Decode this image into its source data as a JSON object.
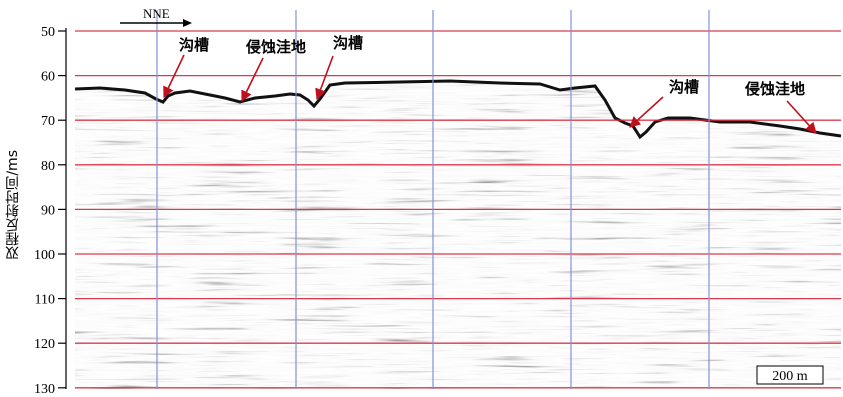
{
  "figure": {
    "ylabel": "双程反射时间/ms",
    "yticks": [
      "50",
      "60",
      "70",
      "80",
      "90",
      "100",
      "110",
      "120",
      "130"
    ],
    "direction_label": "NNE",
    "scale_label": "200 m",
    "colors": {
      "grid_red": "#d8263a",
      "grid_blue": "#7f8fd6",
      "arrow_red": "#c0101c",
      "label_black": "#000000"
    },
    "annotations": [
      {
        "text": "沟槽"
      },
      {
        "text": "侵蚀洼地"
      },
      {
        "text": "沟槽"
      },
      {
        "text": "沟槽"
      },
      {
        "text": "侵蚀洼地"
      }
    ]
  }
}
